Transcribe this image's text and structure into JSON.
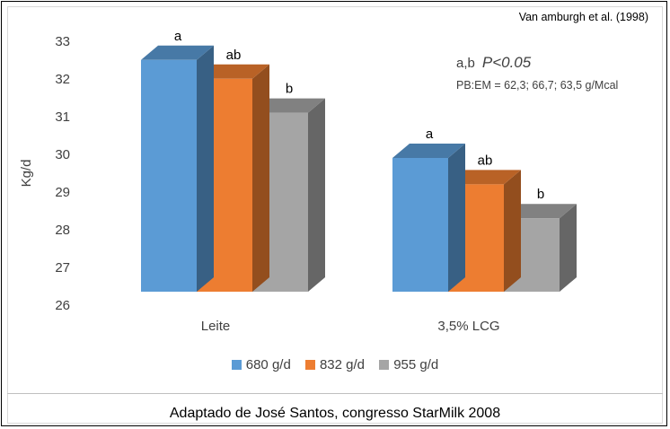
{
  "chart_data": {
    "type": "bar",
    "style": "3d-clustered-column",
    "categories": [
      "Leite",
      "3,5% LCG"
    ],
    "series": [
      {
        "name": "680 g/d",
        "color": "#5b9bd5",
        "values": [
          32.6,
          30.0
        ]
      },
      {
        "name": "832 g/d",
        "color": "#ed7d31",
        "values": [
          32.1,
          29.3
        ]
      },
      {
        "name": "955 g/d",
        "color": "#a5a5a5",
        "values": [
          31.2,
          28.4
        ]
      }
    ],
    "bar_labels": [
      [
        "a",
        "ab",
        "b"
      ],
      [
        "a",
        "ab",
        "b"
      ]
    ],
    "ylabel": "Kg/d",
    "xlabel": "",
    "ylim": [
      26,
      33
    ],
    "yticks": [
      "26",
      "27",
      "28",
      "29",
      "30",
      "31",
      "32",
      "33"
    ],
    "grid": false,
    "legend_position": "bottom",
    "annotations": {
      "source": "Van amburgh et al. (1998)",
      "sig_letters": "a,b",
      "p_value": "P<0.05",
      "pb_em": "PB:EM = 62,3; 66,7; 63,5 g/Mcal"
    }
  },
  "footer": "Adaptado de José Santos, congresso StarMilk 2008"
}
